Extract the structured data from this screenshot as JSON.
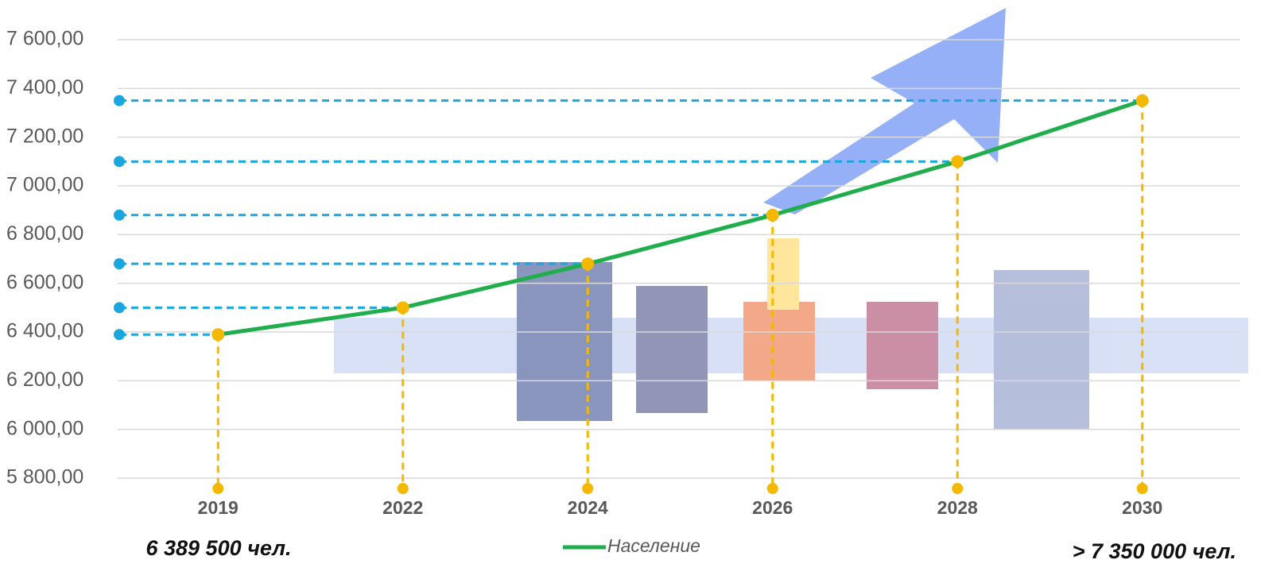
{
  "chart_data": {
    "type": "line",
    "categories": [
      "2019",
      "2022",
      "2024",
      "2026",
      "2028",
      "2030"
    ],
    "series": [
      {
        "name": "Население",
        "color": "#1fae4b",
        "values": [
          6389.5,
          6500,
          6680,
          6880,
          7100,
          7350
        ]
      }
    ],
    "ylim": [
      5800,
      7600
    ],
    "yticks": [
      {
        "value": 5800,
        "label": "5 800,00"
      },
      {
        "value": 6000,
        "label": "6 000,00"
      },
      {
        "value": 6200,
        "label": "6 200,00"
      },
      {
        "value": 6400,
        "label": "6 400,00"
      },
      {
        "value": 6600,
        "label": "6 600,00"
      },
      {
        "value": 6800,
        "label": "6 800,00"
      },
      {
        "value": 7000,
        "label": "7 000,00"
      },
      {
        "value": 7200,
        "label": "7 200,00"
      },
      {
        "value": 7400,
        "label": "7 400,00"
      },
      {
        "value": 7600,
        "label": "7 600,00"
      }
    ],
    "grid": true,
    "annotations": [
      "6 389 500 чел.",
      "> 7 350 000 чел."
    ]
  }
}
